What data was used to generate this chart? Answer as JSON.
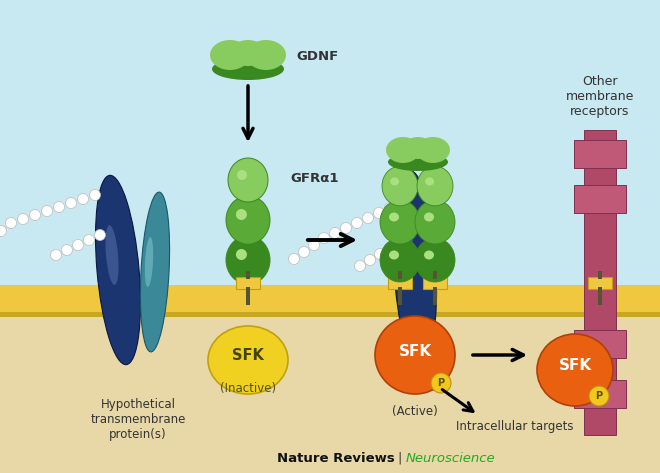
{
  "bg_top_color": "#c8e8f2",
  "bg_bottom_color": "#e8d8a8",
  "membrane_color": "#f0c840",
  "membrane_dark_color": "#c8a820",
  "transmembrane_big_color": "#1a3570",
  "transmembrane_small_color": "#3a8898",
  "gdnf_light_color": "#88cc60",
  "gdnf_dark_color": "#3a8820",
  "gfra1_light": "#88cc60",
  "gfra1_mid": "#5aaa38",
  "gfra1_dark": "#3a8820",
  "gfra1_stem": "#5aaa38",
  "sfk_inactive_color": "#f0d020",
  "sfk_inactive_ec": "#c0a010",
  "sfk_active_color": "#e86010",
  "sfk_active_ec": "#b04008",
  "receptor_main": "#b04868",
  "receptor_ec": "#803050",
  "receptor_knob": "#c05878",
  "phospho_color": "#f0c820",
  "phospho_ec": "#c09010",
  "anchor_box_color": "#f0c840",
  "anchor_box_ec": "#c0a010",
  "chain_color": "#ffffff",
  "chain_ec": "#aaaaaa",
  "title_black": "Nature Reviews",
  "title_sep": " | ",
  "title_green": "Neuroscience",
  "labels": {
    "gdnf": "GDNF",
    "gfra1": "GFRα1",
    "hypothetical": "Hypothetical\ntransmembrane\nprotein(s)",
    "inactive": "(Inactive)",
    "active": "(Active)",
    "sfk": "SFK",
    "intracellular": "Intracellular targets",
    "other": "Other\nmembrane\nreceptors"
  }
}
